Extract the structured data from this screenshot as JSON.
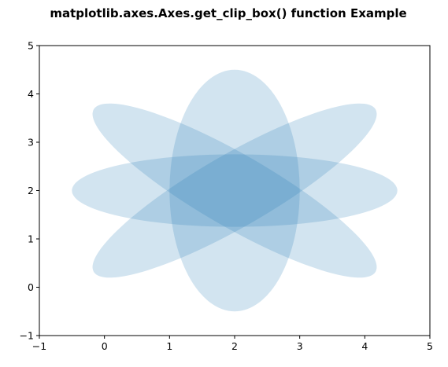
{
  "chart_data": {
    "type": "ellipse-patches",
    "title": "matplotlib.axes.Axes.get_clip_box() function Example",
    "xlabel": "",
    "ylabel": "",
    "xlim": [
      -1,
      5
    ],
    "ylim": [
      -1,
      5
    ],
    "xticks": [
      "−1",
      "0",
      "1",
      "2",
      "3",
      "4",
      "5"
    ],
    "yticks": [
      "−1",
      "0",
      "1",
      "2",
      "3",
      "4",
      "5"
    ],
    "grid": false,
    "fill_color": "#1f77b4",
    "alpha": 0.2,
    "ellipses": [
      {
        "center": [
          2,
          2
        ],
        "width": 5,
        "height": 1.5,
        "angle_deg": 0
      },
      {
        "center": [
          2,
          2
        ],
        "width": 5,
        "height": 1.5,
        "angle_deg": 30
      },
      {
        "center": [
          2,
          2
        ],
        "width": 5,
        "height": 1.5,
        "angle_deg": 150
      },
      {
        "center": [
          2,
          2
        ],
        "width": 2,
        "height": 5,
        "angle_deg": 0
      }
    ]
  }
}
